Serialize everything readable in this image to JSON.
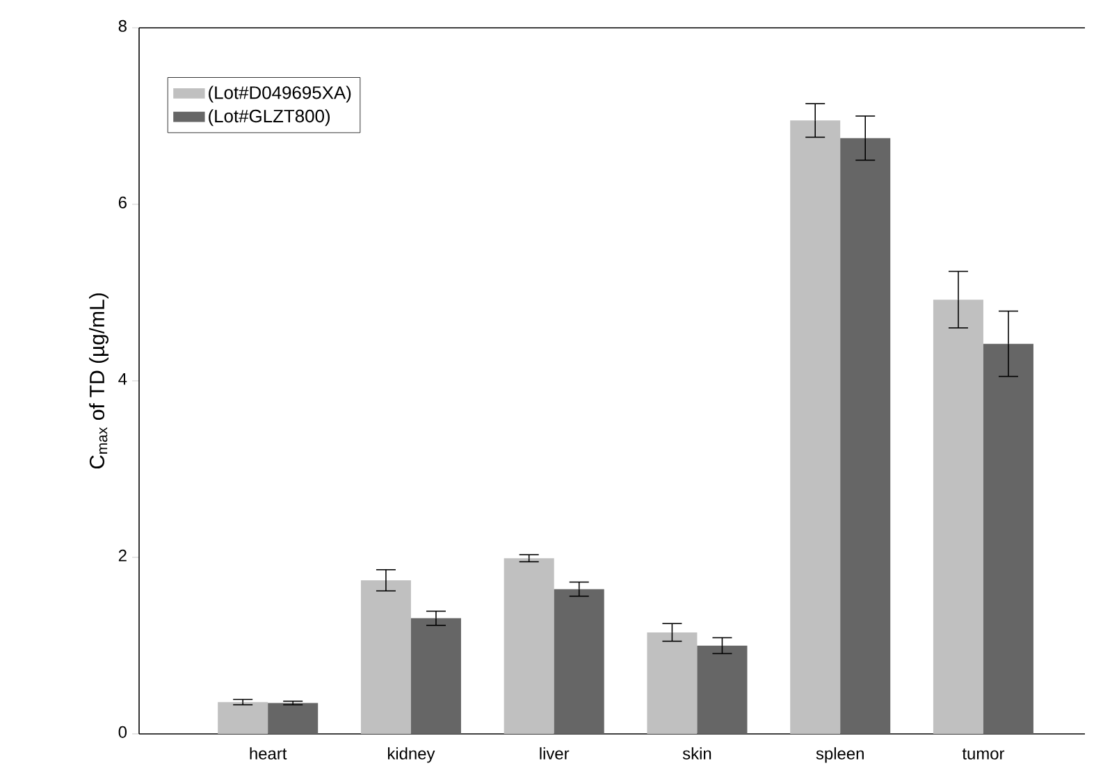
{
  "chart_data": {
    "type": "bar",
    "ylabel": "C$_{max}$ of TD (µg/mL)",
    "categories": [
      "heart",
      "kidney",
      "liver",
      "skin",
      "spleen",
      "tumor"
    ],
    "series": [
      {
        "name": "(Lot#D049695XA)",
        "color": "#c0c0c0",
        "values": [
          0.36,
          1.74,
          1.99,
          1.15,
          6.95,
          4.92
        ],
        "errors": [
          0.03,
          0.12,
          0.04,
          0.1,
          0.19,
          0.32
        ]
      },
      {
        "name": "(Lot#GLZT800)",
        "color": "#666666",
        "values": [
          0.35,
          1.31,
          1.64,
          1.0,
          6.75,
          4.42
        ],
        "errors": [
          0.02,
          0.08,
          0.08,
          0.09,
          0.25,
          0.37
        ]
      }
    ],
    "ylim": [
      0,
      8
    ],
    "yticks": [
      0,
      2,
      4,
      6,
      8
    ],
    "legend": "top left",
    "grid": false
  }
}
